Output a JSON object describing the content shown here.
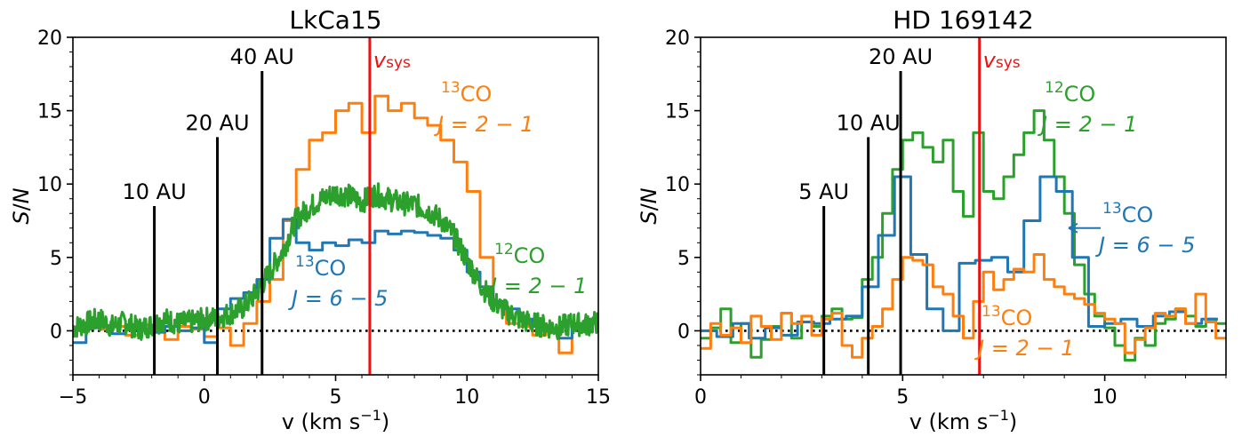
{
  "chart_data": [
    {
      "type": "line",
      "title": "LkCa15",
      "xlabel": {
        "main": "v (km s",
        "sup": "−1",
        "tail": ")"
      },
      "ylabel": {
        "main": "S",
        "sep": "/",
        "end": "N"
      },
      "xlim": [
        -5,
        15
      ],
      "ylim": [
        -3,
        20
      ],
      "xticks": [
        -5,
        0,
        5,
        10,
        15
      ],
      "xtick_labels": [
        "−5",
        "0",
        "5",
        "10",
        "15"
      ],
      "yticks": [
        0,
        5,
        10,
        15,
        20
      ],
      "ytick_labels": [
        "0",
        "5",
        "10",
        "15",
        "20"
      ],
      "v_sys": 6.3,
      "v_sys_label": {
        "main": "v",
        "sub": "sys"
      },
      "radius_markers": [
        {
          "label": "10 AU",
          "x": -1.9,
          "height": 8.5
        },
        {
          "label": "20 AU",
          "x": 0.5,
          "height": 13.2
        },
        {
          "label": "40 AU",
          "x": 2.2,
          "height": 17.7
        }
      ],
      "series": [
        {
          "name": {
            "sup": "13",
            "mol": "CO",
            "line2": "J = 2 − 1"
          },
          "color": "#ff7f0e",
          "step": true,
          "x": [
            -5,
            -4.5,
            -4,
            -3.5,
            -3,
            -2.5,
            -2,
            -1.5,
            -1,
            -0.5,
            0,
            0.5,
            1,
            1.5,
            2,
            2.5,
            3,
            3.5,
            4,
            4.5,
            5,
            5.5,
            6,
            6.5,
            7,
            7.5,
            8,
            8.5,
            9,
            9.5,
            10,
            10.5,
            11,
            11.5,
            12,
            12.5,
            13,
            13.5,
            14,
            14.5
          ],
          "y": [
            0.2,
            0.5,
            0.1,
            0.3,
            -0.3,
            0.4,
            0.2,
            -0.6,
            0.3,
            0.1,
            -0.4,
            0.2,
            -1.0,
            0.5,
            2.0,
            3.5,
            7.5,
            11.0,
            13.0,
            13.5,
            15.0,
            15.5,
            13.5,
            16.0,
            15.0,
            15.5,
            14.5,
            14.0,
            13.0,
            11.5,
            9.5,
            5.0,
            2.0,
            0.5,
            0.3,
            -0.3,
            0.2,
            -1.5,
            0.3,
            0.6
          ]
        },
        {
          "name": {
            "sup": "13",
            "mol": "CO",
            "line2": "J = 6 − 5"
          },
          "color": "#1f77b4",
          "step": true,
          "x": [
            -5,
            -4.5,
            -4,
            -3.5,
            -3,
            -2.5,
            -2,
            -1.5,
            -1,
            -0.5,
            0,
            0.5,
            1,
            1.5,
            2,
            2.5,
            3,
            3.5,
            4,
            4.5,
            5,
            5.5,
            6,
            6.5,
            7,
            7.5,
            8,
            8.5,
            9,
            9.5,
            10,
            10.5,
            11,
            11.5,
            12,
            12.5,
            13,
            13.5,
            14,
            14.5
          ],
          "y": [
            -0.8,
            0.2,
            0.3,
            -0.2,
            0.4,
            0.1,
            -0.1,
            0.3,
            0.0,
            0.2,
            -0.8,
            1.5,
            2.2,
            2.6,
            3.5,
            6.3,
            7.6,
            6.0,
            5.5,
            6.0,
            5.8,
            6.2,
            6.0,
            6.8,
            6.6,
            6.8,
            6.7,
            6.5,
            6.3,
            5.5,
            4.0,
            3.0,
            2.0,
            1.5,
            0.8,
            0.3,
            0.0,
            -0.5,
            0.5,
            0.8
          ]
        },
        {
          "name": {
            "sup": "12",
            "mol": "CO",
            "line2": "J = 2 − 1"
          },
          "color": "#2ca02c",
          "step": false,
          "x": [
            -5,
            -4.5,
            -4,
            -3.5,
            -3,
            -2.5,
            -2,
            -1.5,
            -1,
            -0.5,
            0,
            0.5,
            1,
            1.5,
            2,
            2.5,
            3,
            3.5,
            4,
            4.5,
            5,
            5.5,
            6,
            6.5,
            7,
            7.5,
            8,
            8.5,
            9,
            9.5,
            10,
            10.5,
            11,
            11.5,
            12,
            12.5,
            13,
            13.5,
            14,
            14.5,
            15
          ],
          "y": [
            0.2,
            0.5,
            0.8,
            0.3,
            0.6,
            0.1,
            0.4,
            0.8,
            0.5,
            0.6,
            0.8,
            0.9,
            1.2,
            1.6,
            2.6,
            4.0,
            5.5,
            7.6,
            8.4,
            9.0,
            9.4,
            9.2,
            8.8,
            9.3,
            9.0,
            8.7,
            8.6,
            8.2,
            7.6,
            6.5,
            4.8,
            3.2,
            2.0,
            1.3,
            0.8,
            0.5,
            0.3,
            0.2,
            0.5,
            0.4,
            0.6
          ]
        }
      ],
      "annotations": [
        {
          "sup": "13",
          "mol": "CO",
          "line2": "J = 2 − 1",
          "color": "#ff7f0e"
        },
        {
          "sup": "12",
          "mol": "CO",
          "line2": "J = 2 − 1",
          "color": "#2ca02c"
        },
        {
          "sup": "13",
          "mol": "CO",
          "line2": "J = 6 − 5",
          "color": "#1f77b4"
        }
      ],
      "zero_line": "dotted"
    },
    {
      "type": "line",
      "title": "HD 169142",
      "xlabel": {
        "main": "v (km s",
        "sup": "−1",
        "tail": ")"
      },
      "ylabel": {
        "main": "S",
        "sep": "/",
        "end": "N"
      },
      "xlim": [
        0,
        13
      ],
      "ylim": [
        -3,
        20
      ],
      "xticks": [
        0,
        5,
        10
      ],
      "xtick_labels": [
        "0",
        "5",
        "10"
      ],
      "yticks": [
        0,
        5,
        10,
        15,
        20
      ],
      "ytick_labels": [
        "0",
        "5",
        "10",
        "15",
        "20"
      ],
      "v_sys": 6.9,
      "v_sys_label": {
        "main": "v",
        "sub": "sys"
      },
      "radius_markers": [
        {
          "label": "5 AU",
          "x": 3.05,
          "height": 8.5
        },
        {
          "label": "10 AU",
          "x": 4.15,
          "height": 13.2
        },
        {
          "label": "20 AU",
          "x": 4.95,
          "height": 17.7
        }
      ],
      "series": [
        {
          "name": {
            "sup": "12",
            "mol": "CO",
            "line2": "J = 2 − 1"
          },
          "color": "#2ca02c",
          "step": true,
          "x": [
            0,
            0.25,
            0.5,
            0.75,
            1,
            1.25,
            1.5,
            1.75,
            2,
            2.25,
            2.5,
            2.75,
            3,
            3.25,
            3.5,
            3.75,
            4,
            4.25,
            4.5,
            4.75,
            5,
            5.25,
            5.5,
            5.75,
            6,
            6.25,
            6.5,
            6.75,
            7,
            7.25,
            7.5,
            7.75,
            8,
            8.25,
            8.5,
            8.75,
            9,
            9.25,
            9.5,
            9.75,
            10,
            10.25,
            10.5,
            10.75,
            11,
            11.25,
            11.5,
            11.75,
            12,
            12.25,
            12.5,
            12.75
          ],
          "y": [
            -0.5,
            0.2,
            1.5,
            -0.8,
            0.5,
            -1.8,
            -0.6,
            0.3,
            1.2,
            -0.5,
            0.6,
            0.3,
            1.0,
            1.5,
            0.8,
            0.9,
            3.5,
            5.0,
            8.0,
            11.0,
            13.0,
            13.5,
            12.5,
            11.5,
            13.0,
            9.5,
            7.8,
            13.5,
            9.5,
            9.0,
            10.5,
            12.0,
            13.5,
            15.0,
            13.0,
            10.5,
            8.0,
            4.5,
            2.5,
            1.0,
            0.2,
            -1.0,
            -2.0,
            -0.5,
            -1.0,
            0.5,
            0.8,
            1.5,
            1.0,
            0.3,
            0.8,
            0.5
          ]
        },
        {
          "name": {
            "sup": "13",
            "mol": "CO",
            "line2": "J = 6 − 5"
          },
          "color": "#1f77b4",
          "step": true,
          "x": [
            0,
            0.4,
            0.8,
            1.2,
            1.6,
            2.0,
            2.4,
            2.8,
            3.2,
            3.6,
            4.0,
            4.4,
            4.8,
            5.2,
            5.6,
            6.0,
            6.4,
            6.8,
            7.2,
            7.6,
            8.0,
            8.4,
            8.8,
            9.2,
            9.6,
            10.0,
            10.4,
            10.8,
            11.2,
            11.6,
            12.0,
            12.4
          ],
          "y": [
            0.0,
            -0.4,
            0.5,
            -0.5,
            0.2,
            -0.3,
            0.6,
            0.5,
            0.8,
            1.0,
            3.0,
            6.5,
            10.5,
            5.2,
            1.5,
            0.0,
            4.6,
            4.8,
            5.0,
            4.0,
            7.5,
            10.5,
            9.5,
            5.0,
            0.3,
            0.5,
            0.8,
            0.3,
            1.0,
            1.3,
            0.5,
            0.8
          ]
        },
        {
          "name": {
            "sup": "13",
            "mol": "CO",
            "line2": "J = 2 − 1"
          },
          "color": "#ff7f0e",
          "step": true,
          "x": [
            0,
            0.25,
            0.5,
            0.75,
            1,
            1.25,
            1.5,
            1.75,
            2,
            2.25,
            2.5,
            2.75,
            3,
            3.25,
            3.5,
            3.75,
            4,
            4.25,
            4.5,
            4.75,
            5,
            5.25,
            5.5,
            5.75,
            6,
            6.25,
            6.5,
            6.75,
            7,
            7.25,
            7.5,
            7.75,
            8,
            8.25,
            8.5,
            8.75,
            9,
            9.25,
            9.5,
            9.75,
            10,
            10.25,
            10.5,
            10.75,
            11,
            11.25,
            11.5,
            11.75,
            12,
            12.25,
            12.5,
            12.75
          ],
          "y": [
            -1.2,
            0.5,
            -0.3,
            0.2,
            -0.8,
            1.0,
            0.3,
            -0.6,
            1.2,
            0.5,
            1.0,
            -0.3,
            0.8,
            1.2,
            -1.0,
            -1.8,
            -0.5,
            0.3,
            1.5,
            3.5,
            5.0,
            4.8,
            4.5,
            3.0,
            2.5,
            1.0,
            -0.5,
            2.0,
            4.0,
            2.8,
            3.5,
            4.2,
            4.0,
            5.2,
            3.5,
            3.0,
            2.5,
            2.2,
            1.8,
            1.2,
            0.8,
            0.5,
            -1.5,
            -0.6,
            0.2,
            1.2,
            1.0,
            1.5,
            0.5,
            2.5,
            0.6,
            -0.5
          ]
        }
      ],
      "annotations": [
        {
          "sup": "12",
          "mol": "CO",
          "line2": "J = 2 − 1",
          "color": "#2ca02c"
        },
        {
          "sup": "13",
          "mol": "CO",
          "line2": "J = 6 − 5",
          "color": "#1f77b4"
        },
        {
          "sup": "13",
          "mol": "CO",
          "line2": "J = 2 − 1",
          "color": "#ff7f0e"
        }
      ],
      "zero_line": "dotted",
      "arrow_color": "#1f77b4"
    }
  ],
  "colors": {
    "vsys": "#ee1111",
    "marker": "#000000",
    "axis": "#000000"
  }
}
